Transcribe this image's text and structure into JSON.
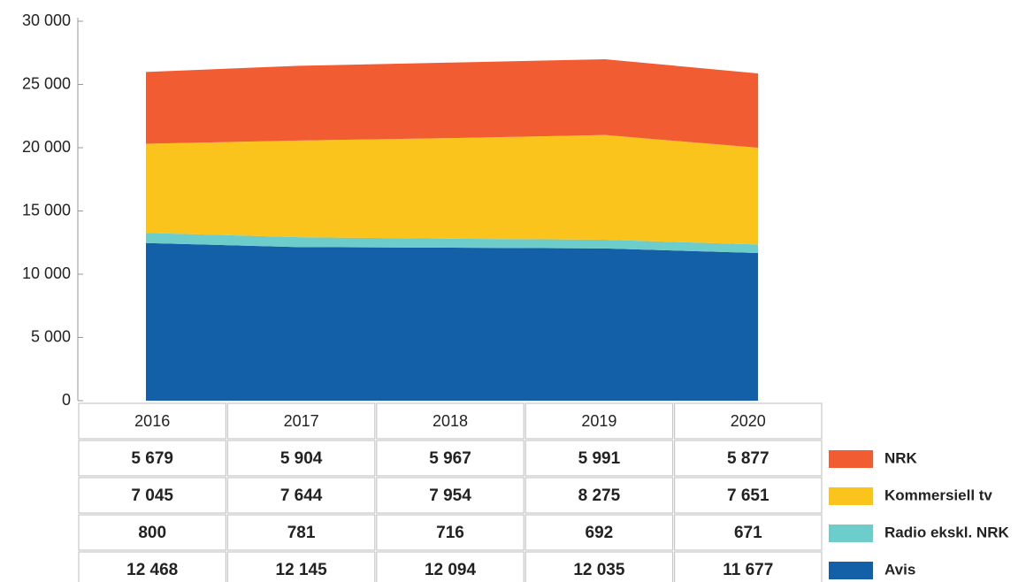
{
  "chart_data": {
    "type": "stacked_area",
    "categories": [
      "2016",
      "2017",
      "2018",
      "2019",
      "2020"
    ],
    "series": [
      {
        "name": "Avis",
        "color": "#135fa8",
        "values": [
          12468,
          12145,
          12094,
          12035,
          11677
        ],
        "value_labels": [
          "12 468",
          "12 145",
          "12 094",
          "12 035",
          "11 677"
        ]
      },
      {
        "name": "Radio ekskl. NRK",
        "color": "#6dcdcb",
        "values": [
          800,
          781,
          716,
          692,
          671
        ],
        "value_labels": [
          "800",
          "781",
          "716",
          "692",
          "671"
        ]
      },
      {
        "name": "Kommersiell tv",
        "color": "#fbc41d",
        "values": [
          7045,
          7644,
          7954,
          8275,
          7651
        ],
        "value_labels": [
          "7 045",
          "7 644",
          "7 954",
          "8 275",
          "7 651"
        ]
      },
      {
        "name": "NRK",
        "color": "#f25c32",
        "values": [
          5679,
          5904,
          5967,
          5991,
          5877
        ],
        "value_labels": [
          "5 679",
          "5 904",
          "5 967",
          "5 991",
          "5 877"
        ]
      }
    ],
    "ylim": [
      0,
      30000
    ],
    "yticks": [
      0,
      {
        "value": 5000,
        "label": "5 000"
      },
      {
        "value": 10000,
        "label": "10 000"
      },
      {
        "value": 15000,
        "label": "15 000"
      },
      {
        "value": 20000,
        "label": "20 000"
      },
      {
        "value": 25000,
        "label": "25 000"
      },
      {
        "value": 30000,
        "label": "30 000"
      }
    ]
  }
}
